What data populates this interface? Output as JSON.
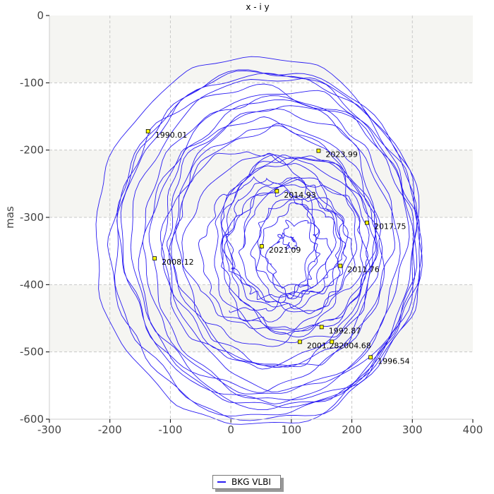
{
  "chart_data": {
    "type": "line",
    "title": "x - i y",
    "xlabel": "",
    "ylabel": "mas",
    "xlim": [
      -300,
      400
    ],
    "ylim": [
      -600,
      0
    ],
    "xticks": [
      -300,
      -200,
      -100,
      0,
      100,
      200,
      300,
      400
    ],
    "yticks": [
      0,
      -100,
      -200,
      -300,
      -400,
      -500,
      -600
    ],
    "grid": true,
    "legend_position": "bottom",
    "series": [
      {
        "name": "BKG VLBI",
        "color": "#2a1cf2"
      }
    ],
    "annotations": [
      {
        "label": "1990.01",
        "x": -137,
        "y": -172
      },
      {
        "label": "1992.87",
        "x": 150,
        "y": -463
      },
      {
        "label": "1996.54",
        "x": 231,
        "y": -508
      },
      {
        "label": "2001.28",
        "x": 114,
        "y": -485
      },
      {
        "label": "2004.68",
        "x": 167,
        "y": -485
      },
      {
        "label": "2008.12",
        "x": -126,
        "y": -361
      },
      {
        "label": "2011.76",
        "x": 181,
        "y": -372
      },
      {
        "label": "2014.93",
        "x": 76,
        "y": -261
      },
      {
        "label": "2017.75",
        "x": 225,
        "y": -308
      },
      {
        "label": "2021.09",
        "x": 51,
        "y": -343
      },
      {
        "label": "2023.99",
        "x": 145,
        "y": -201
      }
    ],
    "marker_color": "#ffff00"
  }
}
